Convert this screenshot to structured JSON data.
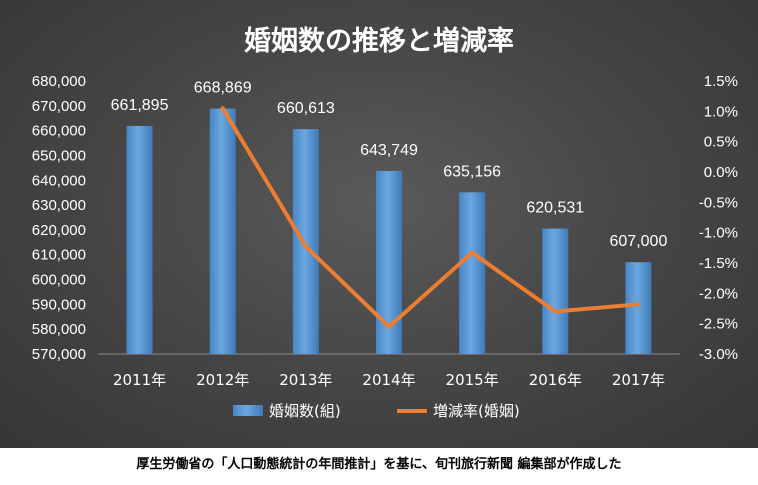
{
  "chart_data": {
    "type": "bar",
    "title": "婚姻数の推移と増減率",
    "categories": [
      "2011年",
      "2012年",
      "2013年",
      "2014年",
      "2015年",
      "2016年",
      "2017年"
    ],
    "series": [
      {
        "name": "婚姻数(組)",
        "type": "bar",
        "axis": "left",
        "values": [
          661895,
          668869,
          660613,
          643749,
          635156,
          620531,
          607000
        ],
        "labels": [
          "661,895",
          "668,869",
          "660,613",
          "643,749",
          "635,156",
          "620,531",
          "607,000"
        ]
      },
      {
        "name": "増減率(婚姻)",
        "type": "line",
        "axis": "right",
        "values": [
          null,
          1.05,
          -1.23,
          -2.55,
          -1.33,
          -2.3,
          -2.18
        ]
      }
    ],
    "ylim_left": [
      570000,
      680000
    ],
    "yticks_left": [
      "570,000",
      "580,000",
      "590,000",
      "600,000",
      "610,000",
      "620,000",
      "630,000",
      "640,000",
      "650,000",
      "660,000",
      "670,000",
      "680,000"
    ],
    "ylim_right": [
      -3.0,
      1.5
    ],
    "yticks_right": [
      "-3.0%",
      "-2.5%",
      "-2.0%",
      "-1.5%",
      "-1.0%",
      "-0.5%",
      "0.0%",
      "0.5%",
      "1.0%",
      "1.5%"
    ],
    "grid": false,
    "legend": "bottom",
    "colors": {
      "bar": "#5b9bd5",
      "line": "#ed7d31",
      "text": "#ffffff",
      "background": "#444444"
    }
  },
  "caption": "厚生労働省の「人口動態統計の年間推計」を基に、旬刊旅行新聞 編集部が作成した"
}
